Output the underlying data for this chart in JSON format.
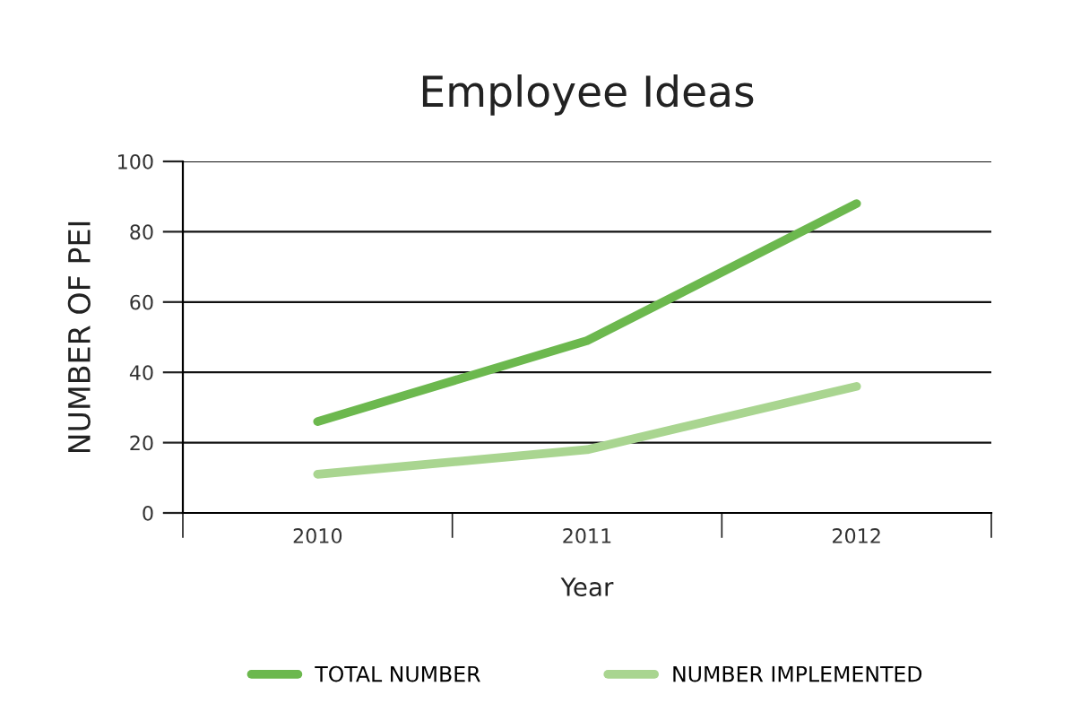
{
  "chart_data": {
    "type": "line",
    "title": "Employee Ideas",
    "xlabel": "Year",
    "ylabel": "NUMBER OF PEI",
    "categories": [
      "2010",
      "2011",
      "2012"
    ],
    "series": [
      {
        "name": "TOTAL NUMBER",
        "color": "#6cb84e",
        "values": [
          26,
          49,
          88
        ]
      },
      {
        "name": "NUMBER IMPLEMENTED",
        "color": "#a9d590",
        "values": [
          11,
          18,
          36
        ]
      }
    ],
    "ylim": [
      0,
      100
    ],
    "yticks": [
      0,
      20,
      40,
      60,
      80,
      100
    ],
    "grid": "y",
    "legend": "bottom",
    "marker": "none",
    "line_style": "solid"
  }
}
